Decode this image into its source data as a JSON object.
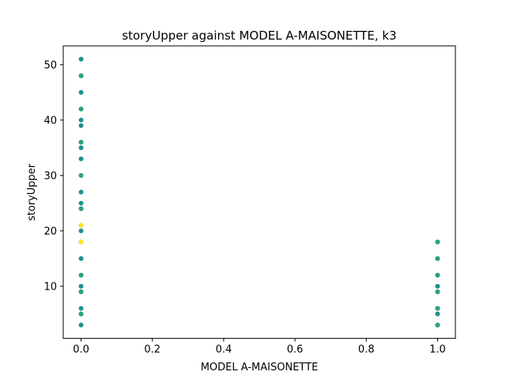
{
  "chart_data": {
    "type": "scatter",
    "title": "storyUpper against MODEL A-MAISONETTE, k3",
    "xlabel": "MODEL A-MAISONETTE",
    "ylabel": "storyUpper",
    "xlim": [
      -0.05,
      1.05
    ],
    "ylim": [
      0.6,
      53.4
    ],
    "xticks": [
      0.0,
      0.2,
      0.4,
      0.6,
      0.8,
      1.0
    ],
    "xtick_labels": [
      "0.0",
      "0.2",
      "0.4",
      "0.6",
      "0.8",
      "1.0"
    ],
    "yticks": [
      10,
      20,
      30,
      40,
      50
    ],
    "ytick_labels": [
      "10",
      "20",
      "30",
      "40",
      "50"
    ],
    "grid": false,
    "legend": "none",
    "colors": {
      "teal": "#21918c",
      "green": "#2ca27f",
      "yellow": "#fde725"
    },
    "series": [
      {
        "color": "teal",
        "points": [
          [
            0,
            3
          ],
          [
            0,
            5
          ],
          [
            0,
            6
          ],
          [
            0,
            9
          ],
          [
            0,
            10
          ],
          [
            0,
            12
          ],
          [
            0,
            15
          ],
          [
            0,
            18
          ],
          [
            0,
            20
          ],
          [
            0,
            21
          ],
          [
            0,
            24
          ],
          [
            0,
            25
          ],
          [
            0,
            27
          ],
          [
            0,
            30
          ],
          [
            0,
            33
          ],
          [
            0,
            35
          ],
          [
            0,
            36
          ],
          [
            0,
            39
          ],
          [
            0,
            40
          ],
          [
            0,
            42
          ],
          [
            0,
            45
          ],
          [
            0,
            48
          ],
          [
            0,
            51
          ],
          [
            1,
            3
          ],
          [
            1,
            5
          ],
          [
            1,
            6
          ],
          [
            1,
            9
          ],
          [
            1,
            10
          ],
          [
            1,
            12
          ],
          [
            1,
            15
          ],
          [
            1,
            18
          ]
        ]
      },
      {
        "color": "green",
        "points": [
          [
            0,
            5
          ],
          [
            0,
            9
          ],
          [
            0,
            12
          ],
          [
            0,
            24
          ],
          [
            0,
            30
          ],
          [
            0,
            36
          ],
          [
            0,
            42
          ],
          [
            0,
            48
          ],
          [
            1,
            3
          ],
          [
            1,
            6
          ],
          [
            1,
            9
          ],
          [
            1,
            12
          ],
          [
            1,
            15
          ],
          [
            1,
            18
          ]
        ]
      },
      {
        "color": "yellow",
        "points": [
          [
            0,
            18
          ],
          [
            0,
            21
          ]
        ]
      }
    ]
  }
}
